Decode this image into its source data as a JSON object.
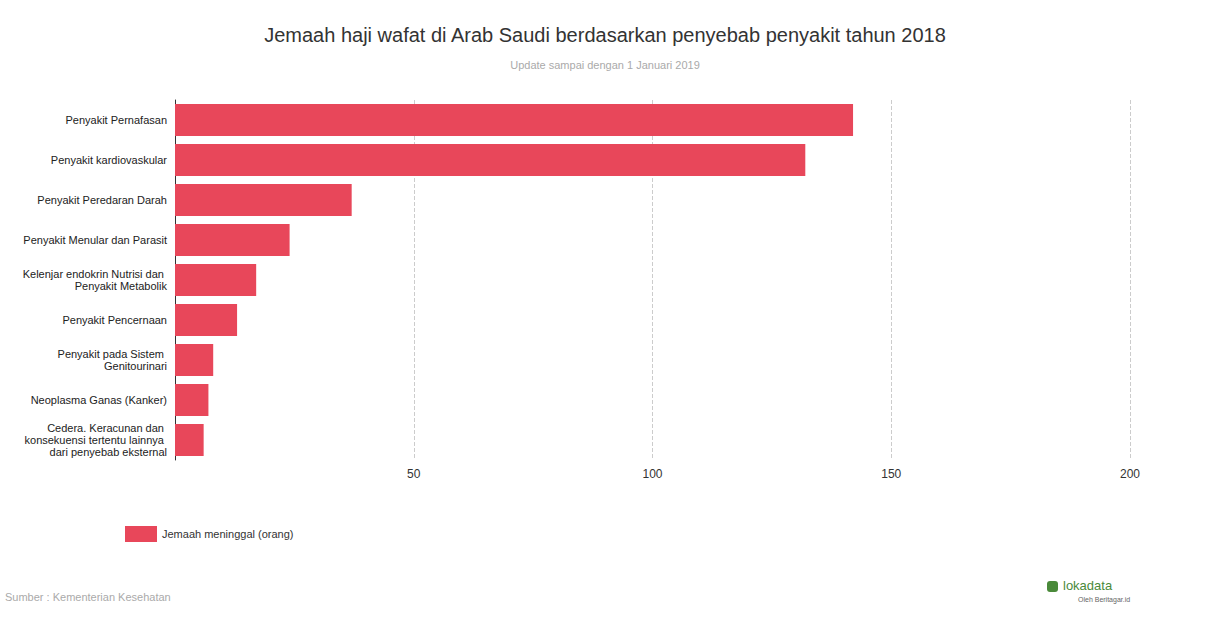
{
  "chart_data": {
    "type": "bar",
    "orientation": "horizontal",
    "title": "Jemaah haji wafat di Arab Saudi berdasarkan penyebab penyakit tahun 2018",
    "subtitle": "Update sampai dengan 1 Januari 2019",
    "source": "Sumber : Kementerian Kesehatan",
    "logo": "lokadata",
    "logo_sub": "Oleh Beritagar.id",
    "categories": [
      "Penyakit Pernafasan",
      "Penyakit kardiovaskular",
      "Penyakit Peredaran Darah",
      "Penyakit Menular dan Parasit",
      "Kelenjar endokrin Nutrisi dan Penyakit Metabolik",
      "Penyakit Pencernaan",
      "Penyakit pada Sistem Genitourinari",
      "Neoplasma Ganas (Kanker)",
      "Cedera. Keracunan dan konsekuensi tertentu lainnya dari penyebab eksternal"
    ],
    "series": [
      {
        "name": "Jemaah meninggal (orang)",
        "color": "#e8475a",
        "values": [
          142,
          132,
          37,
          24,
          17,
          13,
          8,
          7,
          6
        ]
      }
    ],
    "xlim": [
      0,
      200
    ],
    "xticks": [
      50,
      100,
      150,
      200
    ],
    "grid": true,
    "legend": "bottom-left"
  }
}
